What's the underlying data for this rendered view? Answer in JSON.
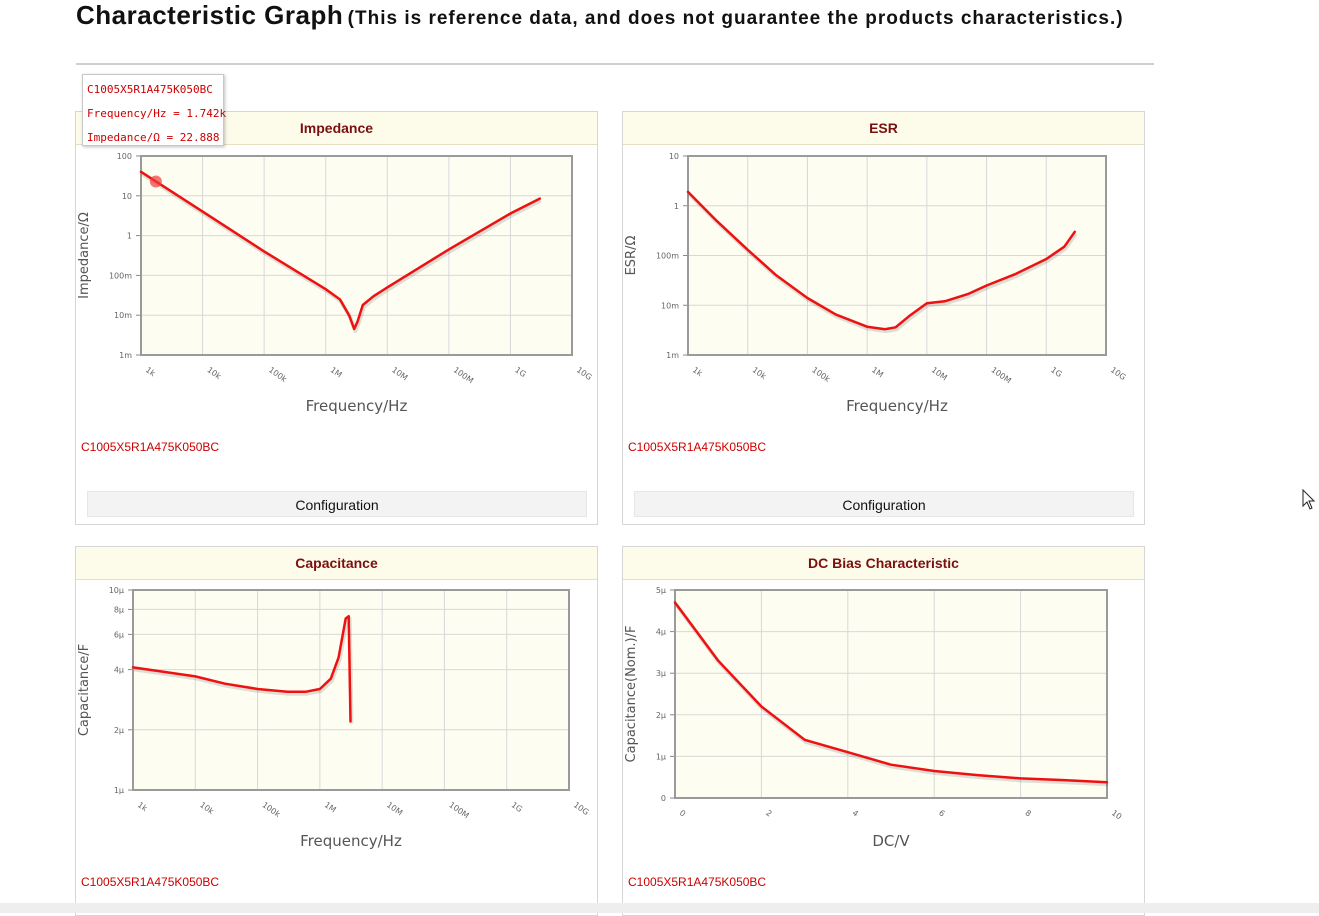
{
  "page": {
    "title_main": "Characteristic Graph",
    "title_sub": "(This is reference data, and does not guarantee the products characteristics.)"
  },
  "tooltip": {
    "line1": "C1005X5R1A475K050BC",
    "line2": "Frequency/Hz = 1.742k",
    "line3": "Impedance/Ω = 22.888"
  },
  "colors": {
    "curve": "#ee1111",
    "plot_bg": "#fefdf2",
    "panel_header": "#fdfbea",
    "title_text": "#7a1010",
    "part_text": "#cc0000"
  },
  "panels": {
    "impedance": {
      "title": "Impedance",
      "part": "C1005X5R1A475K050BC",
      "config_label": "Configuration"
    },
    "esr": {
      "title": "ESR",
      "part": "C1005X5R1A475K050BC",
      "config_label": "Configuration"
    },
    "capacitance": {
      "title": "Capacitance",
      "part": "C1005X5R1A475K050BC"
    },
    "dcbias": {
      "title": "DC Bias Characteristic",
      "part": "C1005X5R1A475K050BC"
    }
  },
  "chart_data": [
    {
      "id": "impedance",
      "type": "line",
      "title": "Impedance",
      "xlabel": "Frequency/Hz",
      "ylabel": "Impedance/Ω",
      "xscale": "log",
      "yscale": "log",
      "xlim": [
        1000,
        10000000000
      ],
      "ylim": [
        0.001,
        100
      ],
      "xticks": [
        {
          "v": 1000,
          "t": "1k"
        },
        {
          "v": 10000,
          "t": "10k"
        },
        {
          "v": 100000,
          "t": "100k"
        },
        {
          "v": 1000000,
          "t": "1M"
        },
        {
          "v": 10000000,
          "t": "10M"
        },
        {
          "v": 100000000,
          "t": "100M"
        },
        {
          "v": 1000000000,
          "t": "1G"
        },
        {
          "v": 10000000000,
          "t": "10G"
        }
      ],
      "yticks": [
        {
          "v": 0.001,
          "t": "1m"
        },
        {
          "v": 0.01,
          "t": "10m"
        },
        {
          "v": 0.1,
          "t": "100m"
        },
        {
          "v": 1,
          "t": "1"
        },
        {
          "v": 10,
          "t": "10"
        },
        {
          "v": 100,
          "t": "100"
        }
      ],
      "grid": true,
      "highlight": {
        "x": 1742,
        "y": 22.888
      },
      "series": [
        {
          "points": [
            [
              1000,
              40
            ],
            [
              10000,
              4
            ],
            [
              100000,
              0.4
            ],
            [
              1000000,
              0.045
            ],
            [
              1700000,
              0.025
            ],
            [
              2400000,
              0.01
            ],
            [
              2900000,
              0.0045
            ],
            [
              3300000,
              0.007
            ],
            [
              4000000,
              0.018
            ],
            [
              6000000,
              0.03
            ],
            [
              10000000,
              0.05
            ],
            [
              100000000,
              0.45
            ],
            [
              1000000000,
              3.6
            ],
            [
              3000000000,
              8.5
            ]
          ]
        }
      ]
    },
    {
      "id": "esr",
      "type": "line",
      "title": "ESR",
      "xlabel": "Frequency/Hz",
      "ylabel": "ESR/Ω",
      "xscale": "log",
      "yscale": "log",
      "xlim": [
        1000,
        10000000000
      ],
      "ylim": [
        0.001,
        10
      ],
      "xticks": [
        {
          "v": 1000,
          "t": "1k"
        },
        {
          "v": 10000,
          "t": "10k"
        },
        {
          "v": 100000,
          "t": "100k"
        },
        {
          "v": 1000000,
          "t": "1M"
        },
        {
          "v": 10000000,
          "t": "10M"
        },
        {
          "v": 100000000,
          "t": "100M"
        },
        {
          "v": 1000000000,
          "t": "1G"
        },
        {
          "v": 10000000000,
          "t": "10G"
        }
      ],
      "yticks": [
        {
          "v": 0.001,
          "t": "1m"
        },
        {
          "v": 0.01,
          "t": "10m"
        },
        {
          "v": 0.1,
          "t": "100m"
        },
        {
          "v": 1,
          "t": "1"
        },
        {
          "v": 10,
          "t": "10"
        }
      ],
      "grid": true,
      "series": [
        {
          "points": [
            [
              1000,
              1.9
            ],
            [
              3000,
              0.5
            ],
            [
              10000,
              0.13
            ],
            [
              30000,
              0.04
            ],
            [
              100000,
              0.014
            ],
            [
              300000,
              0.0065
            ],
            [
              1000000,
              0.0037
            ],
            [
              2000000,
              0.0033
            ],
            [
              3000000,
              0.0036
            ],
            [
              5000000,
              0.006
            ],
            [
              10000000,
              0.011
            ],
            [
              20000000,
              0.012
            ],
            [
              50000000,
              0.017
            ],
            [
              100000000,
              0.025
            ],
            [
              300000000,
              0.042
            ],
            [
              1000000000,
              0.085
            ],
            [
              2000000000,
              0.15
            ],
            [
              3000000000,
              0.3
            ]
          ]
        }
      ]
    },
    {
      "id": "capacitance",
      "type": "line",
      "title": "Capacitance",
      "xlabel": "Frequency/Hz",
      "ylabel": "Capacitance/F",
      "xscale": "log",
      "yscale": "log",
      "xlim": [
        1000,
        10000000000
      ],
      "ylim": [
        1e-06,
        1e-05
      ],
      "xticks": [
        {
          "v": 1000,
          "t": "1k"
        },
        {
          "v": 10000,
          "t": "10k"
        },
        {
          "v": 100000,
          "t": "100k"
        },
        {
          "v": 1000000,
          "t": "1M"
        },
        {
          "v": 10000000,
          "t": "10M"
        },
        {
          "v": 100000000,
          "t": "100M"
        },
        {
          "v": 1000000000,
          "t": "1G"
        },
        {
          "v": 10000000000,
          "t": "10G"
        }
      ],
      "yticks": [
        {
          "v": 1e-06,
          "t": "1μ"
        },
        {
          "v": 2e-06,
          "t": "2μ"
        },
        {
          "v": 4e-06,
          "t": "4μ"
        },
        {
          "v": 6e-06,
          "t": "6μ"
        },
        {
          "v": 8e-06,
          "t": "8μ"
        },
        {
          "v": 1e-05,
          "t": "10μ"
        }
      ],
      "grid": true,
      "series": [
        {
          "points": [
            [
              1000,
              4.1e-06
            ],
            [
              10000,
              3.7e-06
            ],
            [
              30000,
              3.4e-06
            ],
            [
              100000,
              3.2e-06
            ],
            [
              300000,
              3.1e-06
            ],
            [
              600000,
              3.1e-06
            ],
            [
              1000000,
              3.2e-06
            ],
            [
              1500000,
              3.6e-06
            ],
            [
              2000000,
              4.6e-06
            ],
            [
              2600000,
              7.2e-06
            ],
            [
              2900000,
              7.4e-06
            ],
            [
              3100000,
              2.2e-06
            ]
          ]
        }
      ]
    },
    {
      "id": "dcbias",
      "type": "line",
      "title": "DC Bias Characteristic",
      "xlabel": "DC/V",
      "ylabel": "Capacitance(Nom.)/F",
      "xscale": "linear",
      "yscale": "linear",
      "xlim": [
        0,
        10
      ],
      "ylim": [
        0,
        5e-06
      ],
      "xticks": [
        {
          "v": 0,
          "t": "0"
        },
        {
          "v": 2,
          "t": "2"
        },
        {
          "v": 4,
          "t": "4"
        },
        {
          "v": 6,
          "t": "6"
        },
        {
          "v": 8,
          "t": "8"
        },
        {
          "v": 10,
          "t": "10"
        }
      ],
      "yticks": [
        {
          "v": 0,
          "t": "0"
        },
        {
          "v": 1e-06,
          "t": "1μ"
        },
        {
          "v": 2e-06,
          "t": "2μ"
        },
        {
          "v": 3e-06,
          "t": "3μ"
        },
        {
          "v": 4e-06,
          "t": "4μ"
        },
        {
          "v": 5e-06,
          "t": "5μ"
        }
      ],
      "grid": true,
      "series": [
        {
          "points": [
            [
              0,
              4.7e-06
            ],
            [
              1,
              3.3e-06
            ],
            [
              2,
              2.2e-06
            ],
            [
              3,
              1.4e-06
            ],
            [
              4,
              1.1e-06
            ],
            [
              5,
              8e-07
            ],
            [
              6,
              6.5e-07
            ],
            [
              7,
              5.5e-07
            ],
            [
              8,
              4.7e-07
            ],
            [
              9,
              4.3e-07
            ],
            [
              10,
              3.8e-07
            ]
          ]
        }
      ]
    }
  ]
}
